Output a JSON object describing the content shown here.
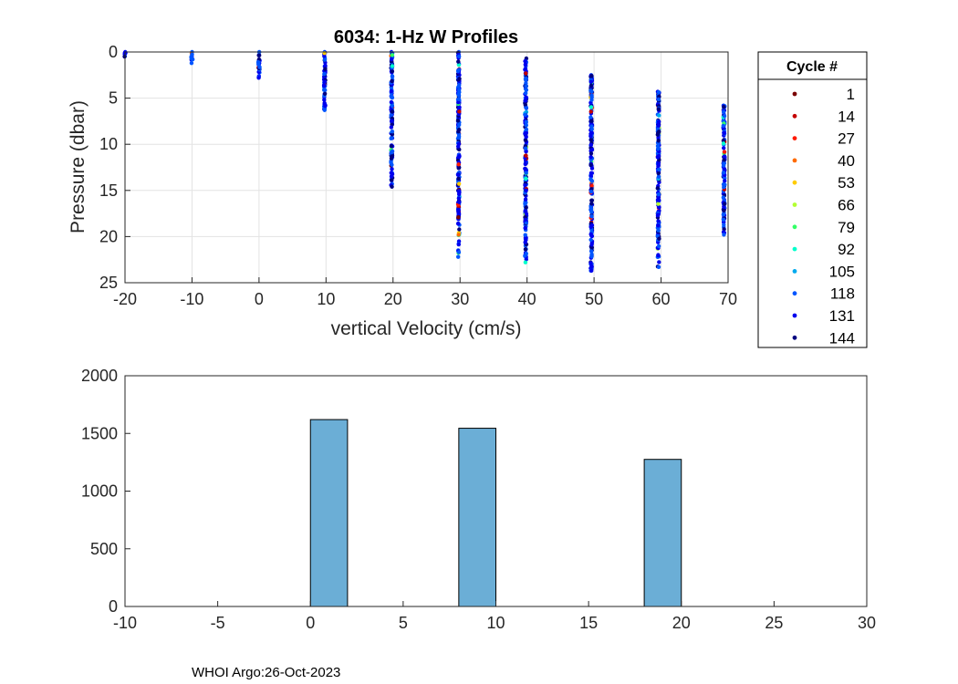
{
  "chart_data": [
    {
      "type": "scatter",
      "title": "6034: 1-Hz W Profiles",
      "xlabel": "vertical Velocity (cm/s)",
      "ylabel": "Pressure (dbar)",
      "xlim": [
        -20,
        70
      ],
      "ylim": [
        0,
        25
      ],
      "y_reversed": true,
      "grid": true,
      "xticks": [
        -20,
        -10,
        0,
        10,
        20,
        30,
        40,
        50,
        60,
        70
      ],
      "yticks": [
        0,
        5,
        10,
        15,
        20,
        25
      ],
      "columns": [
        {
          "x": -20,
          "ymin": 0.0,
          "ymax": 0.5
        },
        {
          "x": -10,
          "ymin": 0.0,
          "ymax": 1.2
        },
        {
          "x": 0,
          "ymin": 0.0,
          "ymax": 2.8
        },
        {
          "x": 9.8,
          "ymin": 0.0,
          "ymax": 6.3
        },
        {
          "x": 19.8,
          "ymin": 0.0,
          "ymax": 14.6
        },
        {
          "x": 29.8,
          "ymin": 0.0,
          "ymax": 22.2
        },
        {
          "x": 39.8,
          "ymin": 0.7,
          "ymax": 22.8
        },
        {
          "x": 49.6,
          "ymin": 2.5,
          "ymax": 23.7
        },
        {
          "x": 59.6,
          "ymin": 4.3,
          "ymax": 23.3
        },
        {
          "x": 69.4,
          "ymin": 5.8,
          "ymax": 19.8
        }
      ],
      "legend": {
        "title": "Cycle #",
        "position": "right",
        "entries": [
          {
            "label": "1",
            "color": "#7a0000"
          },
          {
            "label": "14",
            "color": "#c40000"
          },
          {
            "label": "27",
            "color": "#ff1a00"
          },
          {
            "label": "40",
            "color": "#ff6a00"
          },
          {
            "label": "53",
            "color": "#ffcc00"
          },
          {
            "label": "66",
            "color": "#b3ff33"
          },
          {
            "label": "79",
            "color": "#33ff66"
          },
          {
            "label": "92",
            "color": "#00ffcc"
          },
          {
            "label": "105",
            "color": "#00aaee"
          },
          {
            "label": "118",
            "color": "#0055ff"
          },
          {
            "label": "131",
            "color": "#0000ee"
          },
          {
            "label": "144",
            "color": "#000080"
          }
        ]
      }
    },
    {
      "type": "bar",
      "title": "",
      "xlabel": "",
      "ylabel": "",
      "xlim": [
        -10,
        30
      ],
      "ylim": [
        0,
        2000
      ],
      "xticks": [
        -10,
        -5,
        0,
        5,
        10,
        15,
        20,
        25,
        30
      ],
      "yticks": [
        0,
        500,
        1000,
        1500,
        2000
      ],
      "bar_color": "#6baed6",
      "bins": [
        {
          "x0": 0,
          "x1": 2,
          "value": 1620
        },
        {
          "x0": 8,
          "x1": 10,
          "value": 1545
        },
        {
          "x0": 18,
          "x1": 20,
          "value": 1275
        }
      ]
    }
  ],
  "footer": "WHOI Argo:26-Oct-2023"
}
